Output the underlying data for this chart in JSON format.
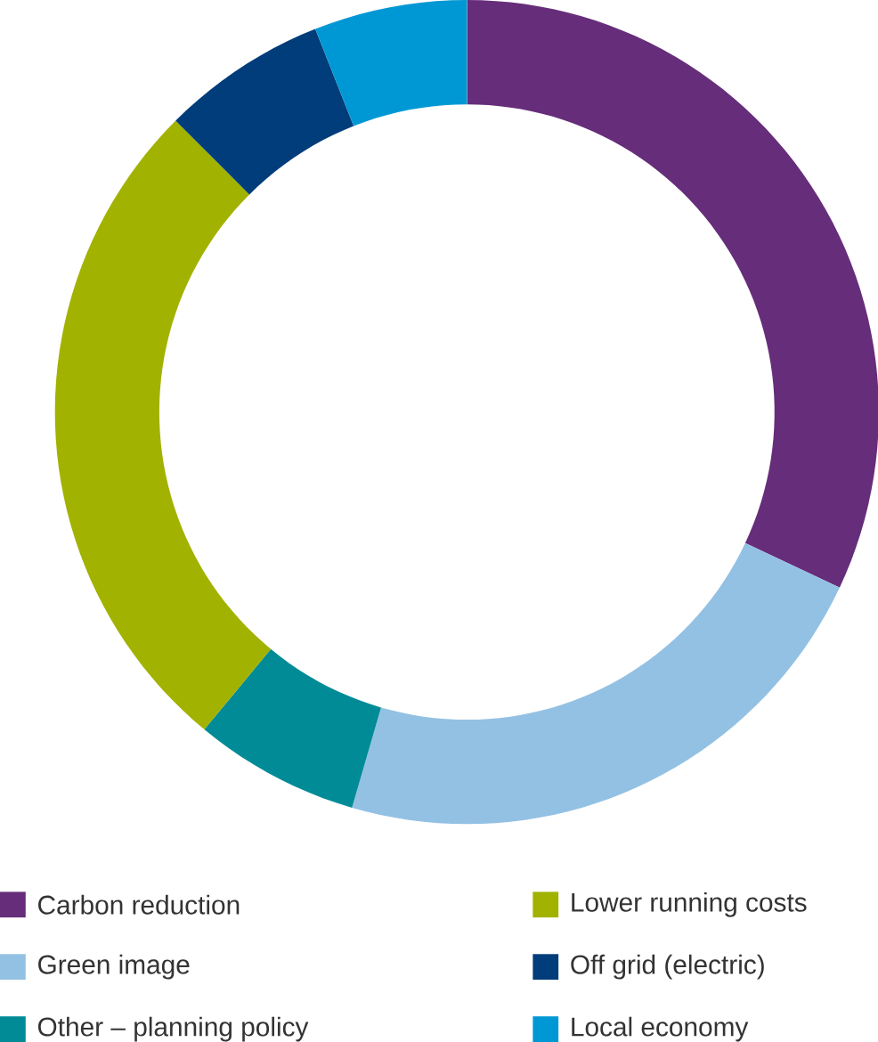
{
  "chart_data": {
    "type": "donut",
    "categories": [
      "Carbon reduction",
      "Green image",
      "Other – planning policy",
      "Lower running costs",
      "Off grid (electric)",
      "Local economy"
    ],
    "values": [
      32,
      22.5,
      6.5,
      26.5,
      6.5,
      6
    ],
    "colors": [
      "#662d7a",
      "#93c1e3",
      "#008b96",
      "#a2b200",
      "#003d7a",
      "#0098d4"
    ],
    "legend": "bottom"
  }
}
